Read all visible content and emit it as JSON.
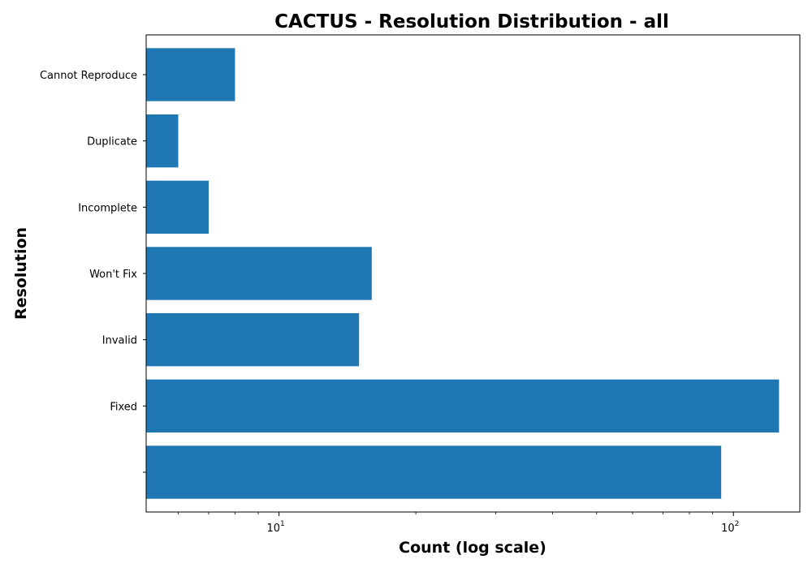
{
  "chart_data": {
    "type": "bar",
    "orientation": "horizontal",
    "title": "CACTUS - Resolution Distribution - all",
    "xlabel": "Count (log scale)",
    "ylabel": "Resolution",
    "x_scale": "log",
    "xlim": [
      5.1,
      140
    ],
    "x_ticks": [
      {
        "value": 10,
        "base": "10",
        "exp": "1"
      },
      {
        "value": 100,
        "base": "10",
        "exp": "2"
      }
    ],
    "categories": [
      "",
      "Fixed",
      "Invalid",
      "Won't Fix",
      "Incomplete",
      "Duplicate",
      "Cannot Reproduce"
    ],
    "values": [
      94,
      126,
      15,
      16,
      7,
      6,
      8
    ],
    "bar_color": "#1f77b4",
    "grid": false,
    "legend": "none"
  }
}
